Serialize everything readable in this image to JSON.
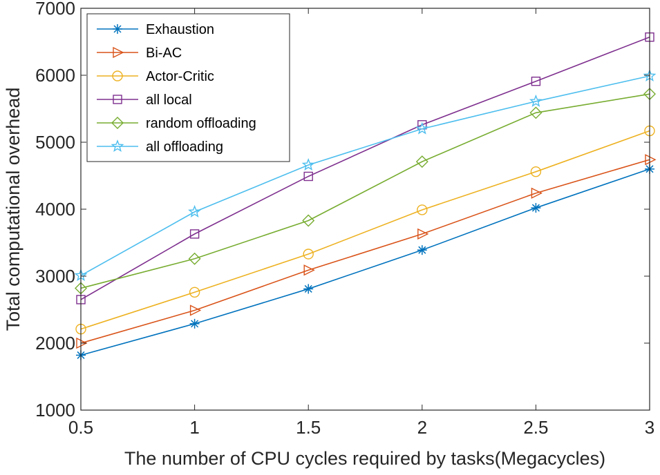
{
  "chart_data": {
    "type": "line",
    "title": "",
    "xlabel": "The number of CPU cycles required by tasks(Megacycles)",
    "ylabel": "Total computational overhead",
    "x": [
      0.5,
      1,
      1.5,
      2,
      2.5,
      3
    ],
    "xlim": [
      0.5,
      3
    ],
    "ylim": [
      1000,
      7000
    ],
    "xticks": [
      0.5,
      1,
      1.5,
      2,
      2.5,
      3
    ],
    "xtick_labels": [
      "0.5",
      "1",
      "1.5",
      "2",
      "2.5",
      "3"
    ],
    "yticks": [
      1000,
      2000,
      3000,
      4000,
      5000,
      6000,
      7000
    ],
    "ytick_labels": [
      "1000",
      "2000",
      "3000",
      "4000",
      "5000",
      "6000",
      "7000"
    ],
    "grid": false,
    "legend_position": "top-left",
    "series": [
      {
        "name": "Exhaustion",
        "color": "#0072BD",
        "marker": "asterisk",
        "values": [
          1820,
          2290,
          2810,
          3390,
          4020,
          4600
        ]
      },
      {
        "name": "Bi-AC",
        "color": "#D95319",
        "marker": "triangle-right",
        "values": [
          2000,
          2490,
          3090,
          3630,
          4240,
          4740
        ]
      },
      {
        "name": "Actor-Critic",
        "color": "#EDB120",
        "marker": "circle",
        "values": [
          2210,
          2760,
          3330,
          3990,
          4560,
          5170
        ]
      },
      {
        "name": "all local",
        "color": "#7E2F8E",
        "marker": "square",
        "values": [
          2650,
          3630,
          4490,
          5260,
          5910,
          6570
        ]
      },
      {
        "name": "random offloading",
        "color": "#77AC30",
        "marker": "diamond",
        "values": [
          2820,
          3260,
          3830,
          4710,
          5440,
          5720
        ]
      },
      {
        "name": "all offloading",
        "color": "#4DBEEE",
        "marker": "pentagram",
        "values": [
          3010,
          3960,
          4660,
          5200,
          5610,
          5990
        ]
      }
    ]
  }
}
